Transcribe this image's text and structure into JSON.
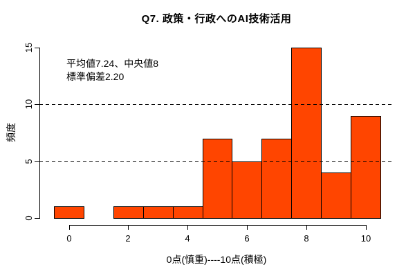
{
  "title": "Q7. 政策・行政へのAI技術活用",
  "chart_data": {
    "type": "bar",
    "subtype": "histogram",
    "title": "Q7. 政策・行政へのAI技術活用",
    "xlabel": "0点(慎重)----10点(積極)",
    "ylabel": "頻度",
    "categories": [
      0,
      1,
      2,
      3,
      4,
      5,
      6,
      7,
      8,
      9,
      10
    ],
    "values": [
      1,
      0,
      1,
      1,
      1,
      7,
      5,
      7,
      15,
      4,
      9
    ],
    "bar_width": 1,
    "x_tick_values": [
      0,
      2,
      4,
      6,
      8,
      10
    ],
    "x_tick_labels": [
      "0",
      "2",
      "4",
      "6",
      "8",
      "10"
    ],
    "y_tick_values": [
      0,
      5,
      10,
      15
    ],
    "y_tick_labels": [
      "0",
      "5",
      "10",
      "15"
    ],
    "xlim": [
      -0.5,
      10.5
    ],
    "ylim": [
      0,
      15
    ],
    "reference_lines_y": [
      5,
      10
    ],
    "reference_line_style": "dashed",
    "legend": "none",
    "grid": "off",
    "annotations": [
      "平均値7.24、中央値8",
      "標準偏差2.20"
    ],
    "stats": {
      "mean": 7.24,
      "median": 8,
      "sd": 2.2
    },
    "colors": {
      "bar_fill": "#FF4500",
      "bar_border": "#000000",
      "axis": "#000000",
      "text": "#000000",
      "reference_line": "#000000",
      "background": "#FFFFFF"
    }
  }
}
